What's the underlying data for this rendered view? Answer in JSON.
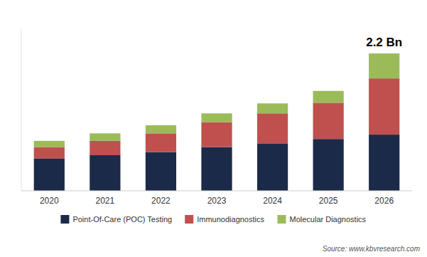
{
  "chart_data": {
    "type": "bar",
    "stacked": true,
    "categories": [
      "2020",
      "2021",
      "2022",
      "2023",
      "2024",
      "2025",
      "2026"
    ],
    "series": [
      {
        "name": "Point-Of-Care (POC) Testing",
        "color": "#1b2a49",
        "values": [
          0.52,
          0.57,
          0.62,
          0.7,
          0.76,
          0.83,
          0.9
        ]
      },
      {
        "name": "Immunodiagnostics",
        "color": "#c0504d",
        "values": [
          0.18,
          0.23,
          0.3,
          0.4,
          0.48,
          0.58,
          0.9
        ]
      },
      {
        "name": "Molecular Diagnostics",
        "color": "#9bbb59",
        "values": [
          0.1,
          0.12,
          0.13,
          0.14,
          0.16,
          0.19,
          0.4
        ]
      }
    ],
    "ylim": [
      0,
      2.6
    ],
    "tick_labels": "x",
    "grid": false,
    "legend": "bottom",
    "annotation": "2.2 Bn",
    "source": "Source: www.kbvresearch.com"
  }
}
